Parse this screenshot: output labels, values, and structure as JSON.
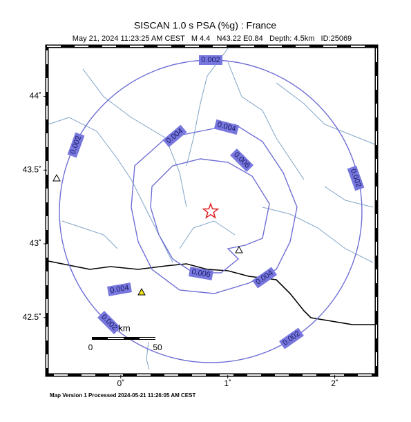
{
  "header": {
    "title": "SISCAN 1.0 s PSA (%g) : France",
    "subtitle": "May 21, 2024 11:23:25 AM CEST   M 4.4   N43.22 E0.84   Depth: 4.5km   ID:25069"
  },
  "map": {
    "xlim": [
      -0.69,
      2.39
    ],
    "ylim": [
      42.11,
      44.34
    ],
    "xticks": [
      {
        "value": 0,
        "label": "0˚"
      },
      {
        "value": 1,
        "label": "1˚"
      },
      {
        "value": 2,
        "label": "2˚"
      }
    ],
    "yticks": [
      {
        "value": 42.5,
        "label": "42.5˚"
      },
      {
        "value": 43,
        "label": "43˚"
      },
      {
        "value": 43.5,
        "label": "43.5˚"
      },
      {
        "value": 44,
        "label": "44˚"
      }
    ],
    "epicenter": {
      "lon": 0.84,
      "lat": 43.22
    },
    "contours": [
      "0.002",
      "0.004",
      "0.006"
    ],
    "scale": {
      "unit": "km",
      "start": "0",
      "end": "50"
    }
  },
  "footer": "Map Version 1 Processed 2024-05-21 11:26:05 AM CEST"
}
